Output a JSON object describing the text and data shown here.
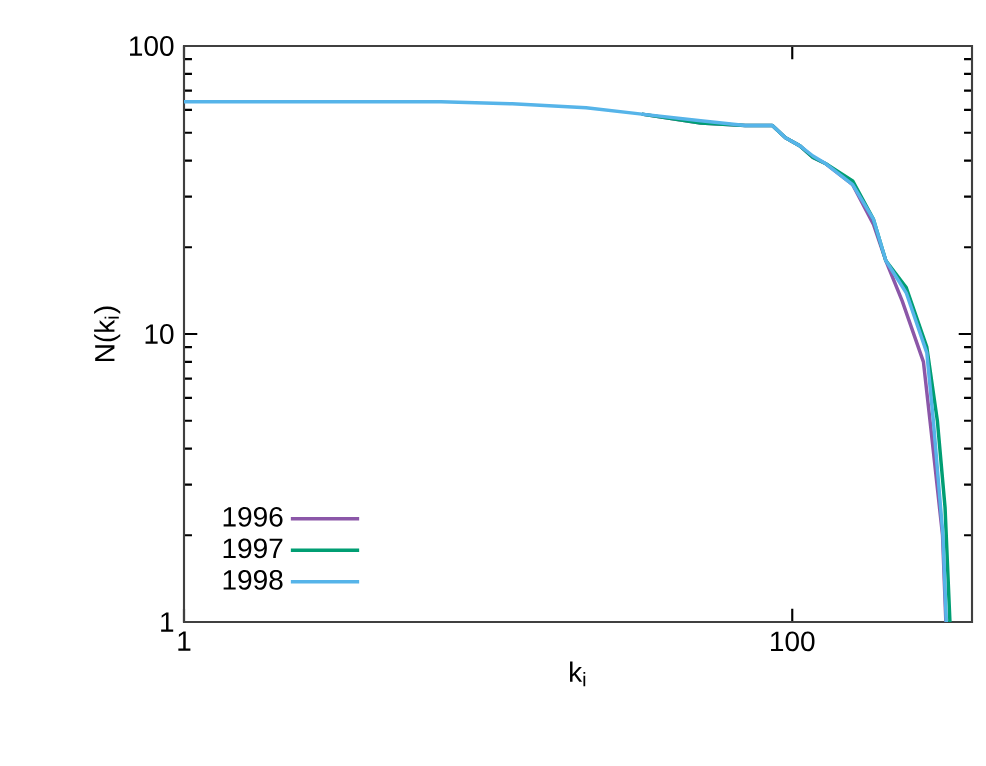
{
  "chart_data": {
    "type": "line",
    "xlabel": "k$_{i}$",
    "ylabel": "N(k$_{i}$)",
    "log": "xy",
    "xlim": [
      1,
      390
    ],
    "ylim": [
      1,
      100
    ],
    "xticks": [
      1,
      100
    ],
    "yticks": [
      1,
      10,
      100
    ],
    "grid": false,
    "legend": "bottom left",
    "series": [
      {
        "name": "1996",
        "color": "#8b57a8",
        "x": [
          32,
          50,
          70,
          86,
          95,
          106,
          117,
          129,
          158,
          185,
          203,
          230,
          270,
          285,
          312,
          320
        ],
        "values": [
          58,
          54,
          53,
          53,
          48,
          45,
          41,
          39,
          33,
          24,
          18,
          13,
          8,
          4.8,
          2,
          1
        ]
      },
      {
        "name": "1997",
        "color": "#009e73",
        "x": [
          32,
          50,
          70,
          86,
          95,
          106,
          117,
          129,
          158,
          185,
          203,
          237,
          277,
          300,
          318,
          330
        ],
        "values": [
          58,
          54,
          53,
          53,
          48,
          45,
          41,
          39,
          34,
          25,
          18,
          14.5,
          9,
          5,
          2.5,
          1
        ]
      },
      {
        "name": "1998",
        "color": "#56b4e9",
        "x": [
          1,
          3,
          7,
          12,
          21,
          32,
          50,
          70,
          86,
          95,
          106,
          117,
          129,
          158,
          185,
          203,
          237,
          277,
          291,
          313,
          321
        ],
        "values": [
          64,
          64,
          64,
          63,
          61,
          58,
          55,
          53,
          53,
          48,
          45,
          41.5,
          39,
          33,
          25,
          18,
          13.9,
          8.6,
          5,
          2,
          1
        ]
      }
    ]
  }
}
